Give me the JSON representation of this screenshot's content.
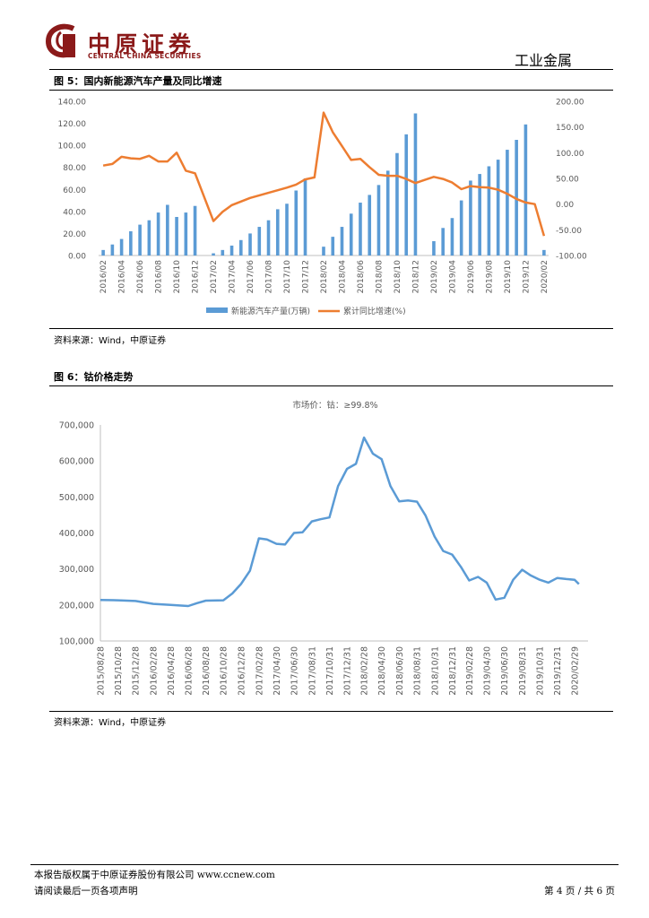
{
  "header": {
    "logo_cn": "中原证券",
    "logo_en": "CENTRAL CHINA SECURITIES",
    "section": "工业金属"
  },
  "figures": [
    {
      "title": "图 5：国内新能源汽车产量及同比增速",
      "source": "资料来源：Wind，中原证券"
    },
    {
      "title": "图 6：钴价格走势",
      "source": "资料来源：Wind，中原证券"
    }
  ],
  "footer": {
    "line1": "本报告版权属于中原证券股份有限公司    www.ccnew.com",
    "line2": "请阅读最后一页各项声明",
    "page": "第 4 页 / 共 6 页"
  },
  "colors": {
    "bar": "#5b9bd5",
    "line": "#ed7d31",
    "cobalt": "#5b9bd5",
    "brand": "#8b1a1a"
  },
  "chart_data": [
    {
      "type": "bar",
      "categories": [
        "2016/02",
        "2016/03",
        "2016/04",
        "2016/05",
        "2016/06",
        "2016/07",
        "2016/08",
        "2016/09",
        "2016/10",
        "2016/11",
        "2016/12",
        "2017/01",
        "2017/02",
        "2017/03",
        "2017/04",
        "2017/05",
        "2017/06",
        "2017/07",
        "2017/08",
        "2017/09",
        "2017/10",
        "2017/11",
        "2017/12",
        "2018/01",
        "2018/02",
        "2018/03",
        "2018/04",
        "2018/05",
        "2018/06",
        "2018/07",
        "2018/08",
        "2018/09",
        "2018/10",
        "2018/11",
        "2018/12",
        "2019/01",
        "2019/02",
        "2019/03",
        "2019/04",
        "2019/05",
        "2019/06",
        "2019/07",
        "2019/08",
        "2019/09",
        "2019/10",
        "2019/11",
        "2019/12",
        "2020/01",
        "2020/02"
      ],
      "xtick_labels": [
        "2016/02",
        "2016/04",
        "2016/06",
        "2016/08",
        "2016/10",
        "2016/12",
        "2017/02",
        "2017/04",
        "2017/06",
        "2017/08",
        "2017/10",
        "2017/12",
        "2018/02",
        "2018/04",
        "2018/06",
        "2018/08",
        "2018/10",
        "2018/12",
        "2019/02",
        "2019/04",
        "2019/06",
        "2019/08",
        "2019/10",
        "2019/12",
        "2020/02"
      ],
      "series": [
        {
          "name": "新能源汽车产量(万辆)",
          "axis": "left",
          "values": [
            5,
            10,
            15,
            22,
            28,
            32,
            39,
            46,
            35,
            39,
            45,
            null,
            2,
            5,
            9,
            14,
            20,
            26,
            32,
            42,
            47,
            59,
            70,
            null,
            8,
            17,
            26,
            38,
            48,
            55,
            64,
            77,
            93,
            110,
            129,
            null,
            13,
            25,
            34,
            50,
            68,
            74,
            81,
            87,
            96,
            105,
            119,
            null,
            5
          ]
        },
        {
          "name": "累计同比增速(%)",
          "axis": "right",
          "values": [
            75,
            78,
            92,
            89,
            88,
            94,
            83,
            83,
            100,
            65,
            60,
            null,
            -33,
            -15,
            -2,
            5,
            12,
            17,
            22,
            27,
            32,
            38,
            48,
            52,
            178,
            140,
            113,
            86,
            88,
            72,
            57,
            55,
            55,
            49,
            41,
            47,
            53,
            49,
            42,
            29,
            35,
            33,
            32,
            28,
            20,
            10,
            3,
            0,
            -62
          ]
        }
      ],
      "ylim_left": [
        0,
        140
      ],
      "yticks_left": [
        "0.00",
        "20.00",
        "40.00",
        "60.00",
        "80.00",
        "100.00",
        "120.00",
        "140.00"
      ],
      "ylim_right": [
        -100,
        200
      ],
      "yticks_right": [
        "-100.00",
        "-50.00",
        "0.00",
        "50.00",
        "100.00",
        "150.00",
        "200.00"
      ],
      "legend": "bottom"
    },
    {
      "type": "line",
      "title": "市场价：钴：≥99.8%",
      "xtick_labels": [
        "2015/08/28",
        "2015/10/28",
        "2015/12/28",
        "2016/02/28",
        "2016/04/28",
        "2016/06/28",
        "2016/08/28",
        "2016/10/28",
        "2016/12/28",
        "2017/02/28",
        "2017/04/30",
        "2017/06/30",
        "2017/08/31",
        "2017/10/31",
        "2017/12/31",
        "2018/02/28",
        "2018/04/30",
        "2018/06/30",
        "2018/08/31",
        "2018/10/31",
        "2018/12/31",
        "2019/02/28",
        "2019/04/30",
        "2019/06/30",
        "2019/08/31",
        "2019/10/31",
        "2019/12/31",
        "2020/02/29"
      ],
      "x": [
        "2015/08/28",
        "2015/10/28",
        "2015/12/28",
        "2016/02/28",
        "2016/04/28",
        "2016/06/28",
        "2016/07/28",
        "2016/08/28",
        "2016/10/28",
        "2016/11/28",
        "2016/12/28",
        "2017/01/28",
        "2017/02/28",
        "2017/03/28",
        "2017/04/30",
        "2017/05/30",
        "2017/06/30",
        "2017/07/30",
        "2017/08/31",
        "2017/09/30",
        "2017/10/31",
        "2017/11/30",
        "2017/12/31",
        "2018/01/31",
        "2018/02/28",
        "2018/03/31",
        "2018/04/30",
        "2018/05/31",
        "2018/06/30",
        "2018/07/31",
        "2018/08/31",
        "2018/09/30",
        "2018/10/31",
        "2018/11/30",
        "2018/12/31",
        "2019/01/31",
        "2019/02/28",
        "2019/03/31",
        "2019/04/30",
        "2019/05/31",
        "2019/06/30",
        "2019/07/31",
        "2019/08/31",
        "2019/09/30",
        "2019/10/31",
        "2019/11/30",
        "2019/12/31",
        "2020/01/31",
        "2020/02/29",
        "2020/03/15"
      ],
      "values": [
        214,
        213,
        211,
        203,
        200,
        197,
        205,
        212,
        213,
        232,
        258,
        295,
        385,
        382,
        370,
        368,
        400,
        402,
        432,
        438,
        443,
        530,
        578,
        592,
        665,
        620,
        605,
        530,
        488,
        490,
        487,
        448,
        390,
        350,
        340,
        305,
        268,
        278,
        262,
        215,
        220,
        270,
        298,
        282,
        270,
        262,
        275,
        272,
        270,
        258
      ],
      "ylim": [
        100000,
        700000
      ],
      "yunit_note": "values in thousands of yuan/ton",
      "yticks": [
        "100,000",
        "200,000",
        "300,000",
        "400,000",
        "500,000",
        "600,000",
        "700,000"
      ]
    }
  ]
}
